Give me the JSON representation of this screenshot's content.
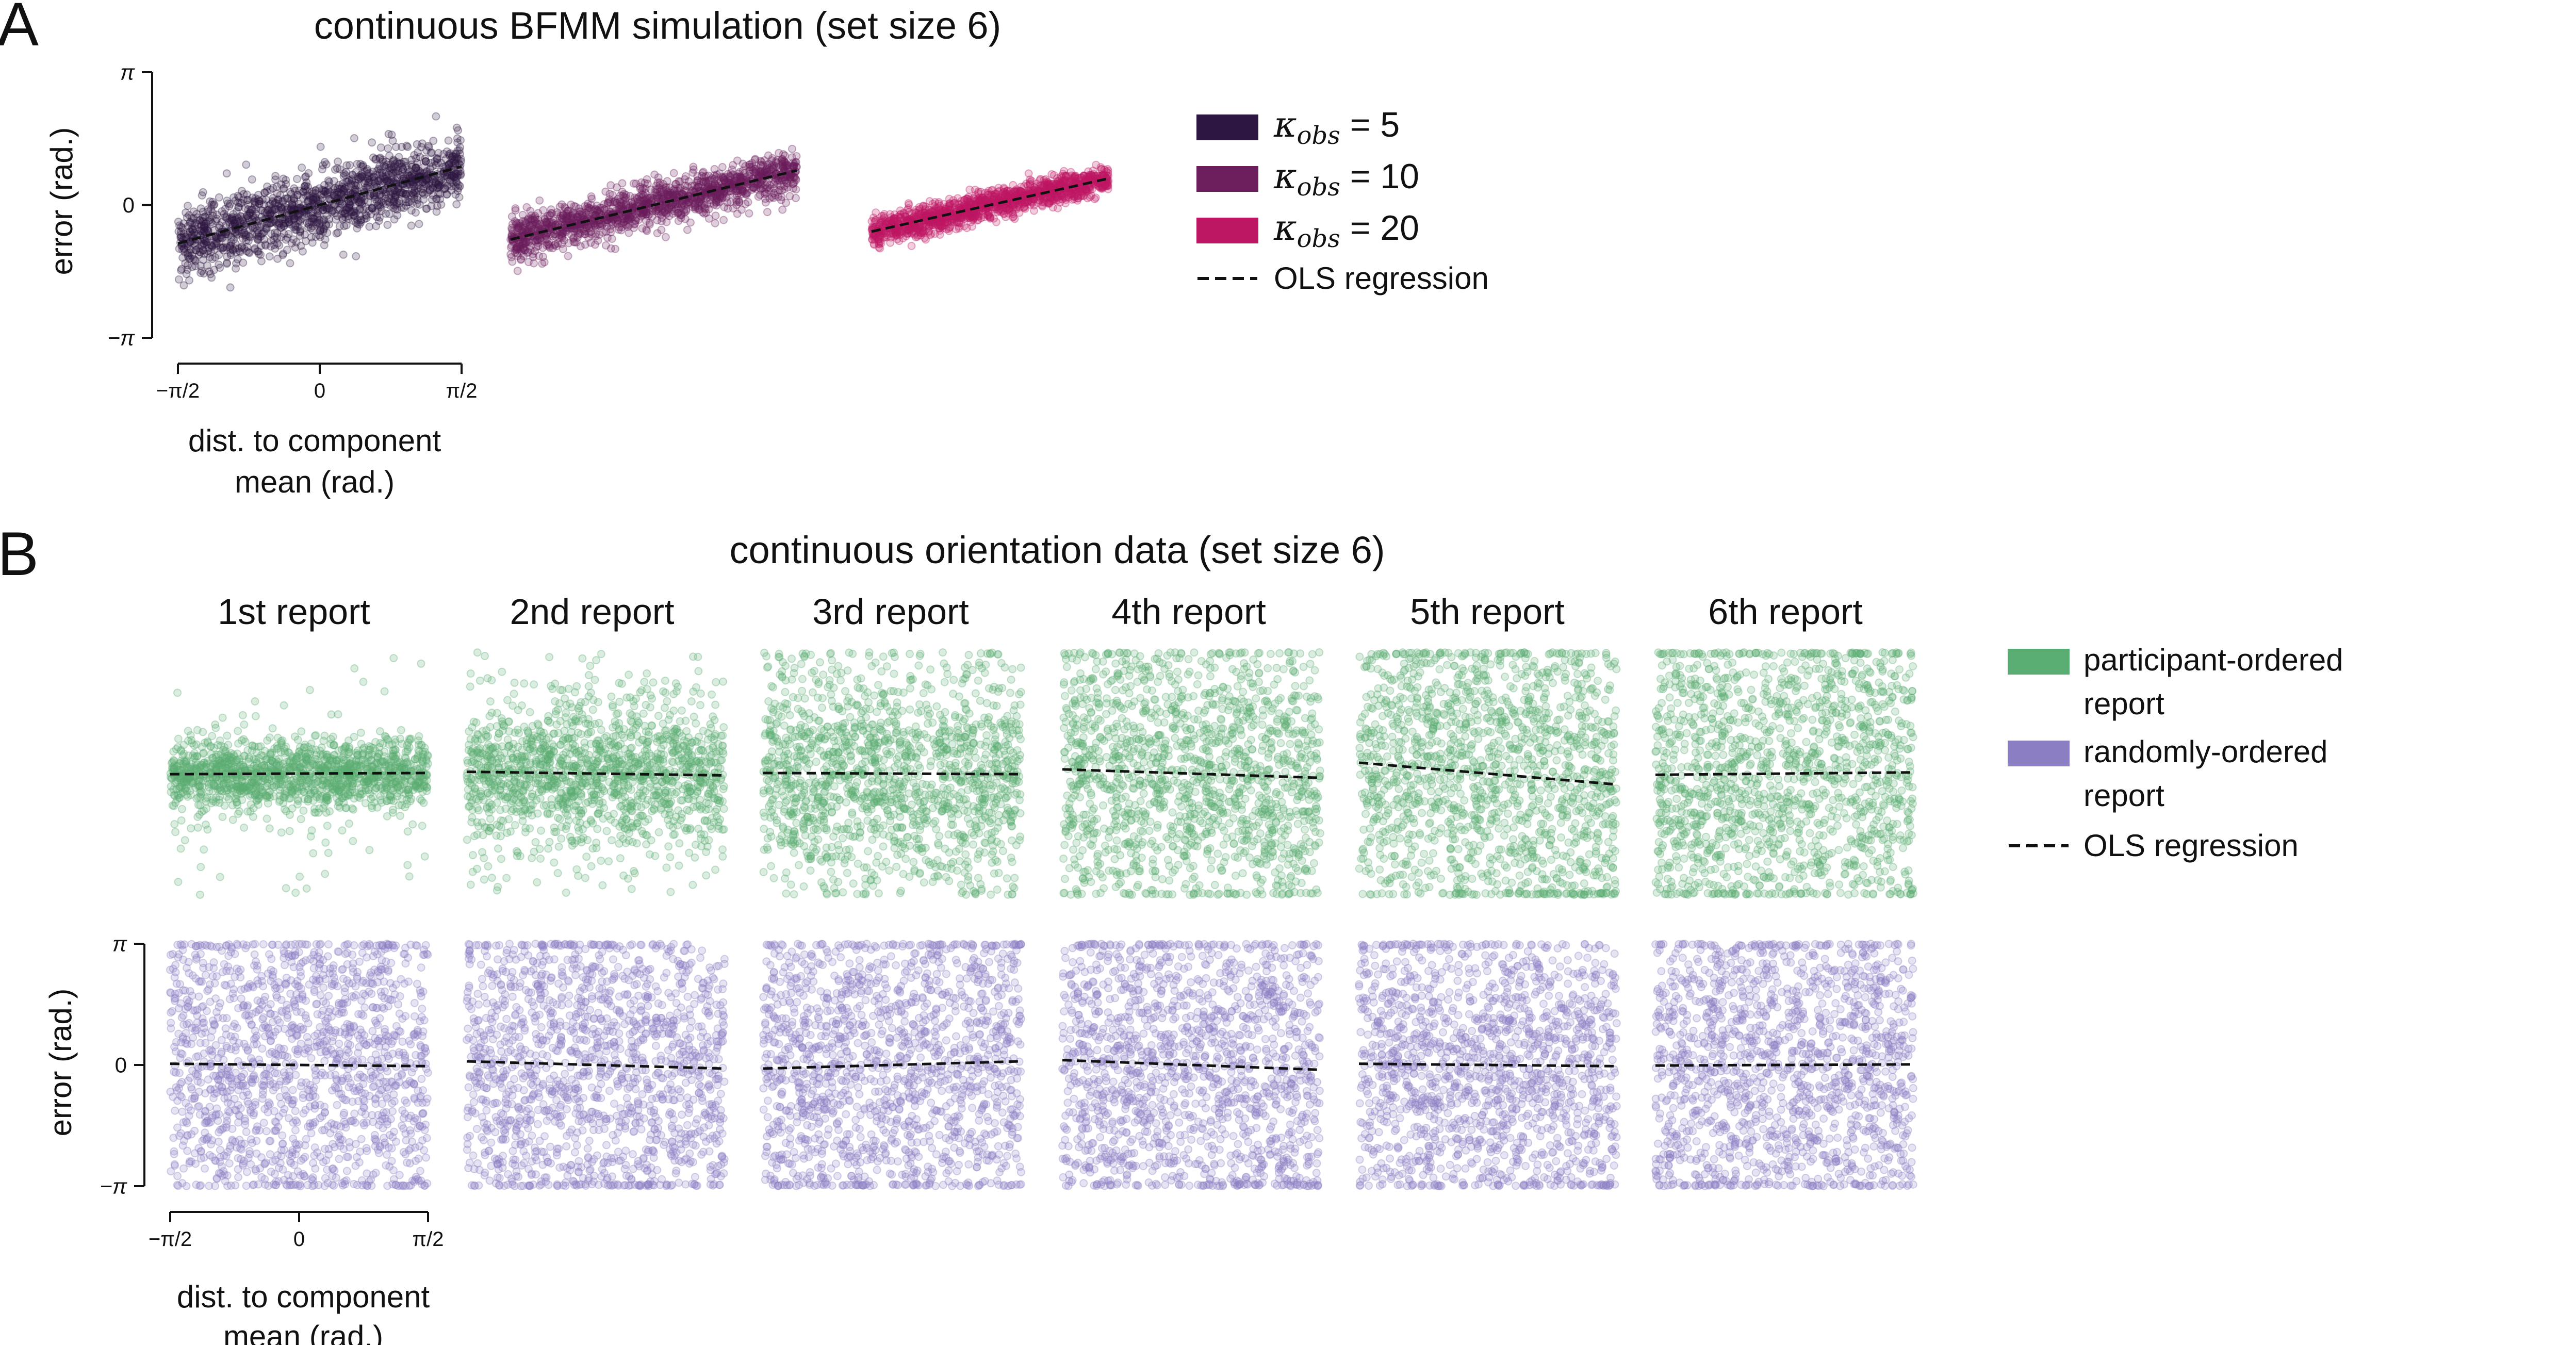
{
  "panel_a": {
    "letter": "A",
    "title": "continuous BFMM simulation (set size 6)",
    "ylabel": "error (rad.)",
    "xlabel_lines": [
      "dist. to component",
      "mean (rad.)"
    ],
    "yticks": [
      "π",
      "0",
      "−π"
    ],
    "xticks": [
      "−π/2",
      "0",
      "π/2"
    ],
    "legend": [
      {
        "symbol": "κ",
        "subscript": "obs",
        "value": " = 5",
        "color": "#2d1642"
      },
      {
        "symbol": "κ",
        "subscript": "obs",
        "value": " = 10",
        "color": "#6b1d5c"
      },
      {
        "symbol": "κ",
        "subscript": "obs",
        "value": " = 20",
        "color": "#bd1662"
      }
    ],
    "legend_ols": "OLS regression"
  },
  "panel_b": {
    "letter": "B",
    "title": "continuous orientation data (set size 6)",
    "column_titles": [
      "1st report",
      "2nd report",
      "3rd report",
      "4th report",
      "5th report",
      "6th report"
    ],
    "ylabel": "error (rad.)",
    "xlabel_lines": [
      "dist. to component",
      "mean (rad.)"
    ],
    "yticks": [
      "π",
      "0",
      "−π"
    ],
    "xticks": [
      "−π/2",
      "0",
      "π/2"
    ],
    "legend": [
      {
        "label_lines": [
          "participant-ordered",
          "report"
        ],
        "color": "#5aad72"
      },
      {
        "label_lines": [
          "randomly-ordered",
          "report"
        ],
        "color": "#8b7ec3"
      }
    ],
    "legend_ols": "OLS regression"
  },
  "chart_data": [
    {
      "type": "scatter",
      "title": "continuous BFMM simulation (set size 6)",
      "xlabel": "dist. to component mean (rad.)",
      "ylabel": "error (rad.)",
      "xlim": [
        -1.5708,
        1.5708
      ],
      "ylim": [
        -3.1416,
        3.1416
      ],
      "series": [
        {
          "name": "κ_obs = 5",
          "color": "#2d1642",
          "slope": 0.58,
          "intercept": 0.0,
          "spread": 0.42
        },
        {
          "name": "κ_obs = 10",
          "color": "#6b1d5c",
          "slope": 0.52,
          "intercept": 0.0,
          "spread": 0.27
        },
        {
          "name": "κ_obs = 20",
          "color": "#bd1662",
          "slope": 0.4,
          "intercept": 0.0,
          "spread": 0.17
        }
      ],
      "annotations": [
        "OLS regression"
      ]
    },
    {
      "type": "scatter",
      "title": "continuous orientation data (set size 6)",
      "xlabel": "dist. to component mean (rad.)",
      "ylabel": "error (rad.)",
      "xlim": [
        -1.5708,
        1.5708
      ],
      "ylim": [
        -3.1416,
        3.1416
      ],
      "panels": [
        {
          "report": "1st report",
          "group": "participant-ordered report",
          "color": "#5aad72",
          "slope": 0.01,
          "intercept": 0.0,
          "spread": 0.45
        },
        {
          "report": "2nd report",
          "group": "participant-ordered report",
          "color": "#5aad72",
          "slope": -0.03,
          "intercept": 0.0,
          "spread": 0.9
        },
        {
          "report": "3rd report",
          "group": "participant-ordered report",
          "color": "#5aad72",
          "slope": -0.01,
          "intercept": 0.0,
          "spread": 1.4
        },
        {
          "report": "4th report",
          "group": "participant-ordered report",
          "color": "#5aad72",
          "slope": -0.07,
          "intercept": 0.0,
          "spread": 1.8
        },
        {
          "report": "5th report",
          "group": "participant-ordered report",
          "color": "#5aad72",
          "slope": -0.18,
          "intercept": 0.0,
          "spread": 2.0
        },
        {
          "report": "6th report",
          "group": "participant-ordered report",
          "color": "#5aad72",
          "slope": 0.02,
          "intercept": 0.0,
          "spread": 2.1
        },
        {
          "report": "1st report",
          "group": "randomly-ordered report",
          "color": "#8b7ec3",
          "slope": -0.02,
          "intercept": 0.0,
          "spread": 2.1
        },
        {
          "report": "2nd report",
          "group": "randomly-ordered report",
          "color": "#8b7ec3",
          "slope": -0.06,
          "intercept": 0.0,
          "spread": 2.1
        },
        {
          "report": "3rd report",
          "group": "randomly-ordered report",
          "color": "#8b7ec3",
          "slope": 0.06,
          "intercept": 0.0,
          "spread": 2.1
        },
        {
          "report": "4th report",
          "group": "randomly-ordered report",
          "color": "#8b7ec3",
          "slope": -0.08,
          "intercept": 0.0,
          "spread": 2.1
        },
        {
          "report": "5th report",
          "group": "randomly-ordered report",
          "color": "#8b7ec3",
          "slope": -0.02,
          "intercept": 0.0,
          "spread": 2.1
        },
        {
          "report": "6th report",
          "group": "randomly-ordered report",
          "color": "#8b7ec3",
          "slope": 0.01,
          "intercept": 0.0,
          "spread": 2.1
        }
      ],
      "annotations": [
        "OLS regression"
      ]
    }
  ]
}
